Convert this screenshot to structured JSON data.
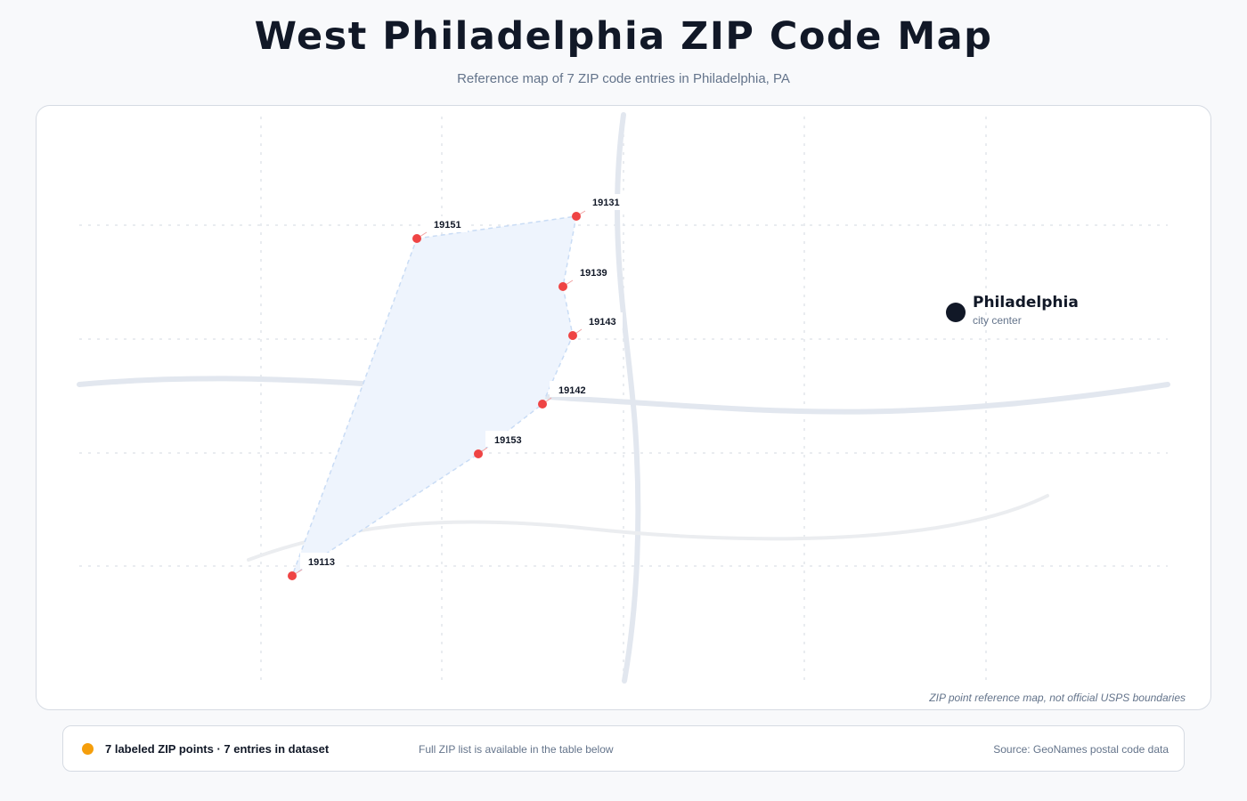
{
  "header": {
    "title": "West Philadelphia ZIP Code Map",
    "subtitle": "Reference map of 7 ZIP code entries in Philadelphia, PA"
  },
  "map": {
    "note": "ZIP point reference map, not official USPS boundaries",
    "city": {
      "name": "Philadelphia",
      "subtitle": "city center"
    },
    "zip_points": [
      {
        "zip": "19131"
      },
      {
        "zip": "19151"
      },
      {
        "zip": "19139"
      },
      {
        "zip": "19143"
      },
      {
        "zip": "19142"
      },
      {
        "zip": "19153"
      },
      {
        "zip": "19113"
      }
    ],
    "colors": {
      "zip_marker": "#ef4444",
      "city_marker": "#111827",
      "area_fill": "#eef4fd",
      "roads": "#e2e7ef"
    }
  },
  "footer": {
    "legend_text": "7 labeled ZIP points · 7 entries in dataset",
    "legend_color": "#f59e0b",
    "list_note": "Full ZIP list is available in the table below",
    "source": "Source: GeoNames postal code data"
  }
}
